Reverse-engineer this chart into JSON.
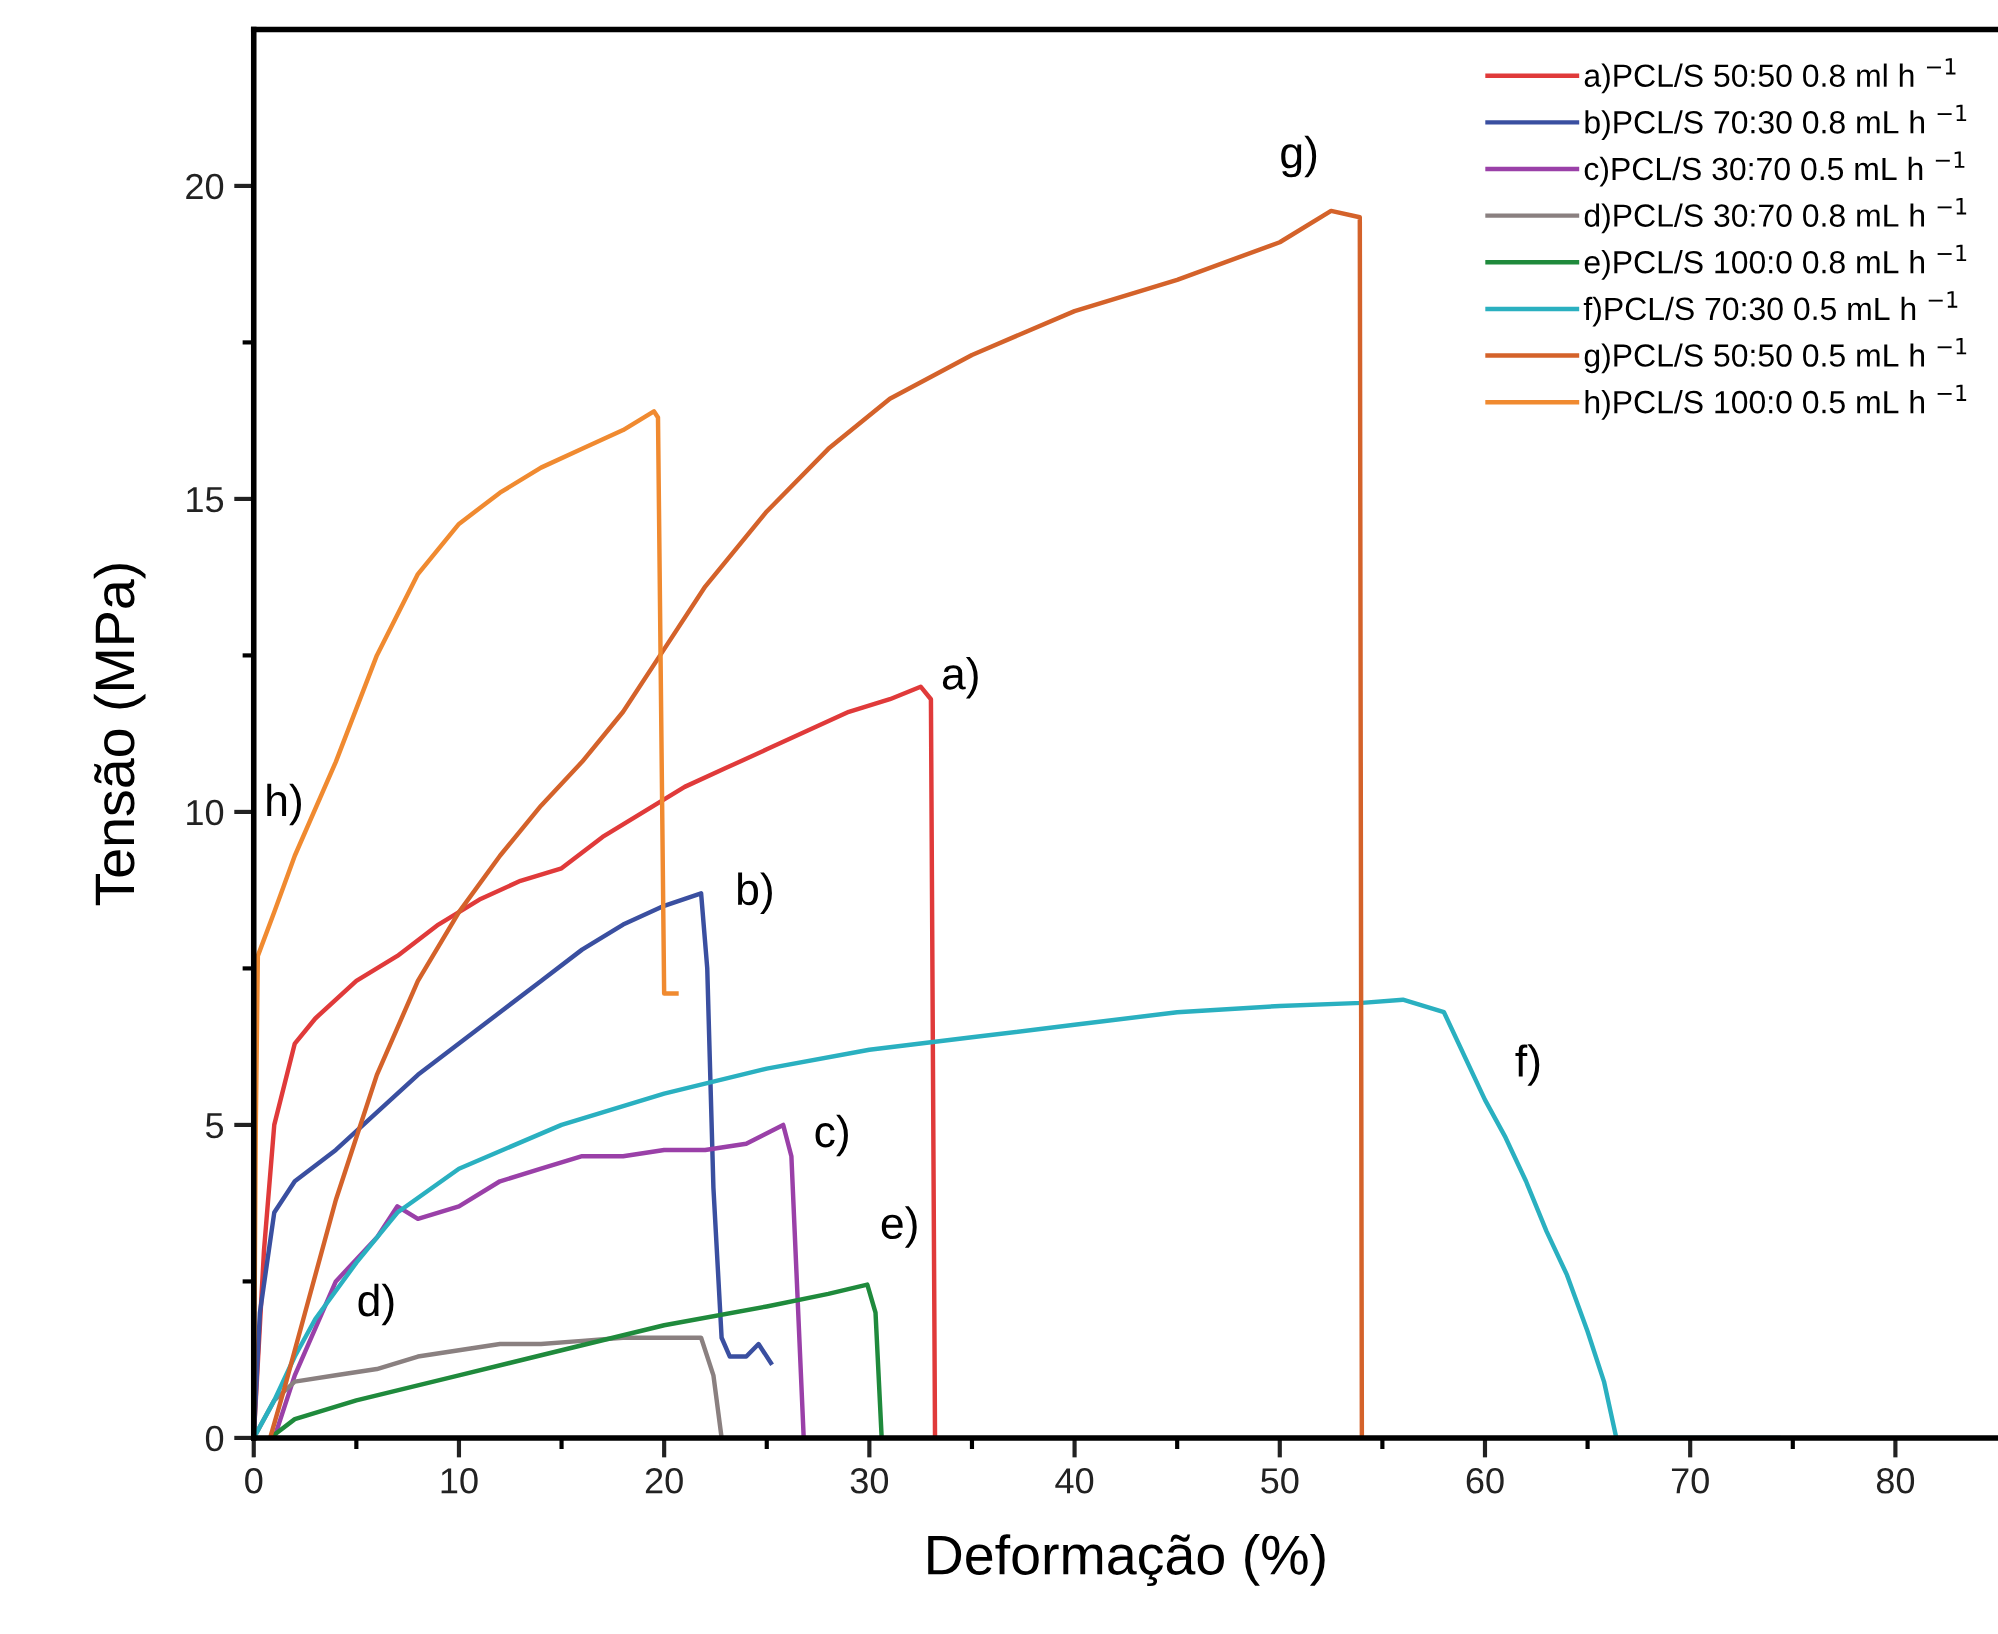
{
  "chart_data": {
    "type": "line",
    "xlabel": "Deformação (%)",
    "ylabel": "Tensão (MPa)",
    "xlim": [
      0,
      85
    ],
    "ylim": [
      0,
      22.5
    ],
    "xticks": [
      0,
      {
        "value": 5,
        "label": null
      },
      10,
      {
        "value": 15,
        "label": null
      },
      20,
      {
        "value": 25,
        "label": null
      },
      30,
      {
        "value": 35,
        "label": null
      },
      40,
      {
        "value": 45,
        "label": null
      },
      50,
      {
        "value": 55,
        "label": null
      },
      60,
      {
        "value": 65,
        "label": null
      },
      70,
      {
        "value": 75,
        "label": null
      },
      80
    ],
    "yticks": [
      0,
      {
        "value": 2.5,
        "label": null
      },
      5,
      {
        "value": 7.5,
        "label": null
      },
      10,
      {
        "value": 12.5,
        "label": null
      },
      15,
      {
        "value": 17.5,
        "label": null
      },
      20
    ],
    "grid": false,
    "legend": "top right",
    "marker": "none",
    "line_style": "solid",
    "series": [
      {
        "name": "a)PCL/S 50:50 0.8 ml h $^{−1}$",
        "color": "#e03a3a",
        "x": [
          0,
          0.5,
          1,
          2,
          3,
          5,
          7,
          9,
          11,
          13,
          15,
          17,
          19,
          21,
          23,
          25,
          27,
          29,
          31,
          32.5,
          33,
          33.2
        ],
        "values": [
          0,
          3,
          5,
          6.3,
          6.7,
          7.3,
          7.7,
          8.2,
          8.6,
          8.9,
          9.1,
          9.6,
          10.0,
          10.4,
          10.7,
          11.0,
          11.3,
          11.6,
          11.8,
          12.0,
          11.8,
          0
        ]
      },
      {
        "name": "b)PCL/S 70:30 0.8 mL h $^{−1}$",
        "color": "#3a4fa0",
        "x": [
          0,
          0.3,
          1,
          2,
          4,
          6,
          8,
          10,
          12,
          14,
          16,
          18,
          20,
          21.8,
          22.1,
          22.4,
          22.8,
          23.2,
          24,
          24.6,
          25.2
        ],
        "values": [
          0,
          2,
          3.6,
          4.1,
          4.6,
          5.2,
          5.8,
          6.3,
          6.8,
          7.3,
          7.8,
          8.2,
          8.5,
          8.7,
          7.5,
          4,
          1.6,
          1.3,
          1.3,
          1.5,
          1.2
        ]
      },
      {
        "name": "c)PCL/S 30:70 0.5 mL h $^{−1}$",
        "color": "#9a40a8",
        "x": [
          1,
          2,
          4,
          6,
          7,
          8,
          10,
          12,
          14,
          16,
          18,
          20,
          22,
          24,
          25.8,
          26.2,
          26.8
        ],
        "values": [
          0,
          1,
          2.5,
          3.2,
          3.7,
          3.5,
          3.7,
          4.1,
          4.3,
          4.5,
          4.5,
          4.6,
          4.6,
          4.7,
          5.0,
          4.5,
          0
        ]
      },
      {
        "name": "d)PCL/S 30:70 0.8 mL h $^{−1}$",
        "color": "#8a8080",
        "x": [
          0,
          1,
          2,
          4,
          6,
          8,
          10,
          12,
          14,
          16,
          18,
          21.8,
          22.4,
          22.8
        ],
        "values": [
          0,
          0.6,
          0.9,
          1.0,
          1.1,
          1.3,
          1.4,
          1.5,
          1.5,
          1.55,
          1.6,
          1.6,
          1.0,
          0
        ]
      },
      {
        "name": "e)PCL/S 100:0 0.8 mL h $^{−1}$",
        "color": "#1f8a3c",
        "x": [
          0.8,
          2,
          5,
          10,
          15,
          20,
          25,
          28,
          29.9,
          30.3,
          30.6
        ],
        "values": [
          0,
          0.3,
          0.6,
          1.0,
          1.4,
          1.8,
          2.1,
          2.3,
          2.45,
          2.0,
          0
        ]
      },
      {
        "name": "f)PCL/S 70:30 0.5 mL h $^{−1}$",
        "color": "#2ab0c0",
        "x": [
          0,
          1,
          2,
          3,
          5,
          7,
          10,
          15,
          20,
          25,
          30,
          35,
          40,
          45,
          50,
          54,
          56,
          58,
          60,
          61,
          62,
          63,
          64,
          65,
          65.8,
          66.4,
          70,
          74.3
        ],
        "values": [
          0,
          0.6,
          1.3,
          1.9,
          2.8,
          3.6,
          4.3,
          5.0,
          5.5,
          5.9,
          6.2,
          6.4,
          6.6,
          6.8,
          6.9,
          6.95,
          7.0,
          6.8,
          5.4,
          4.8,
          4.1,
          3.3,
          2.6,
          1.7,
          0.9,
          0,
          0,
          0
        ]
      },
      {
        "name": "g)PCL/S 50:50 0.5 mL h $^{−1}$",
        "color": "#d4622a",
        "x": [
          0.8,
          1.5,
          2.5,
          4,
          6,
          8,
          10,
          12,
          14,
          16,
          18,
          20,
          22,
          25,
          28,
          31,
          35,
          40,
          45,
          50,
          52.5,
          53.9,
          54
        ],
        "values": [
          0,
          0.8,
          2,
          3.8,
          5.8,
          7.3,
          8.4,
          9.3,
          10.1,
          10.8,
          11.6,
          12.6,
          13.6,
          14.8,
          15.8,
          16.6,
          17.3,
          18.0,
          18.5,
          19.1,
          19.6,
          19.5,
          0
        ]
      },
      {
        "name": "h)PCL/S 100:0 0.5 mL h $^{−1}$",
        "color": "#f08a30",
        "x": [
          0,
          0.1,
          0.2,
          1,
          2,
          4,
          6,
          8,
          10,
          12,
          14,
          16,
          18,
          19.5,
          19.7,
          20,
          20.6
        ],
        "values": [
          0,
          5,
          7.7,
          8.4,
          9.3,
          10.8,
          12.5,
          13.8,
          14.6,
          15.1,
          15.5,
          15.8,
          16.1,
          16.4,
          16.3,
          7.1,
          7.1
        ]
      }
    ],
    "annotations": [
      "a)",
      "b)",
      "c)",
      "d)",
      "e)",
      "f)",
      "g)",
      "h)"
    ]
  }
}
